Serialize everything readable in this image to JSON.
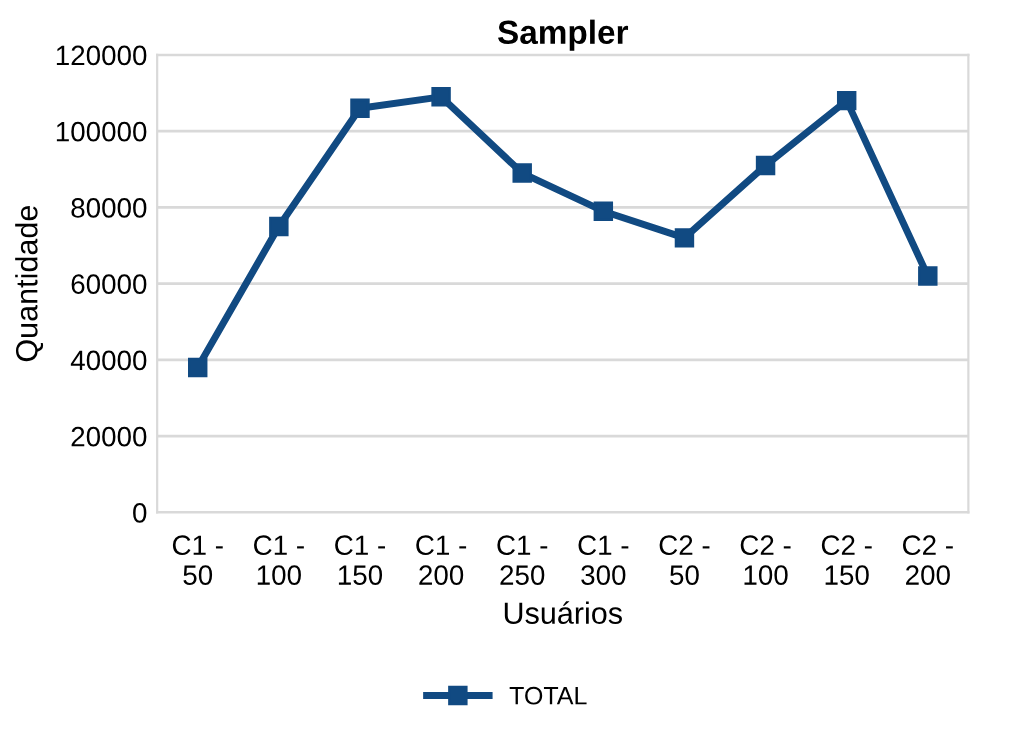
{
  "chart_data": {
    "type": "line",
    "title": "Sampler",
    "xlabel": "Usuários",
    "ylabel": "Quantidade",
    "categories": [
      "C1 -\n50",
      "C1 -\n100",
      "C1 -\n150",
      "C1 -\n200",
      "C1 -\n250",
      "C1 -\n300",
      "C2 -\n50",
      "C2 -\n100",
      "C2 -\n150",
      "C2 -\n200"
    ],
    "series": [
      {
        "name": "TOTAL",
        "color": "#114a82",
        "values": [
          38000,
          75000,
          106000,
          109000,
          89000,
          79000,
          72000,
          91000,
          108000,
          62000
        ]
      }
    ],
    "ylim": [
      0,
      120000
    ],
    "yticks": [
      0,
      20000,
      40000,
      60000,
      80000,
      100000,
      120000
    ],
    "grid": "y",
    "legend": "bottom",
    "marker": "square",
    "line_style": "solid"
  }
}
